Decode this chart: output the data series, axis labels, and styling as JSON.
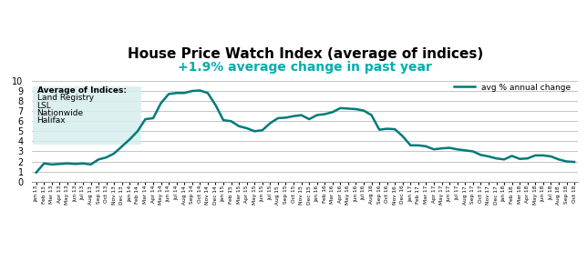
{
  "title": "House Price Watch Index (average of indices)",
  "subtitle": "+1.9% average change in past year",
  "subtitle_color": "#00AEAE",
  "title_color": "#000000",
  "line_color": "#007A7A",
  "legend_label": "avg % annual change",
  "ylabel_values": [
    0,
    1,
    2,
    3,
    4,
    5,
    6,
    7,
    8,
    9,
    10
  ],
  "ylim": [
    0,
    10.5
  ],
  "box_text": [
    "Average of Indices:",
    "Land Registry",
    "LSL",
    "Nationwide",
    "Halifax"
  ],
  "box_bg": "#D6EEEE",
  "x_labels": [
    "Jan 13",
    "Feb 13",
    "Mar 13",
    "Apr 13",
    "May 13",
    "Jun 13",
    "Jul 13",
    "Aug 13",
    "Sep 13",
    "Oct 13",
    "Nov 13",
    "Dec 13",
    "Jan 14",
    "Feb 14",
    "Mar 14",
    "Apr 14",
    "May 14",
    "Jun 14",
    "Jul 14",
    "Aug 14",
    "Sep 14",
    "Oct 14",
    "Nov 14",
    "Dec 14",
    "Jan 15",
    "Feb 15",
    "Mar 15",
    "Apr 15",
    "May 15",
    "Jun 15",
    "Jul 15",
    "Aug 15",
    "Sep 15",
    "Oct 15",
    "Nov 15",
    "Dec 15",
    "Jan 16",
    "Feb 16",
    "Mar 16",
    "Apr 16",
    "May 16",
    "Jun 16",
    "Jul 16",
    "Aug 16",
    "Sep 16",
    "Oct 16",
    "Nov 16",
    "Dec 16",
    "Jan 17",
    "Feb 17",
    "Mar 17",
    "Apr 17",
    "May 17",
    "Jun 17",
    "Jul 17",
    "Aug 17",
    "Sep 17",
    "Oct 17",
    "Nov 17",
    "Dec 17",
    "Jan 18",
    "Feb 18",
    "Mar 18",
    "Apr 18",
    "May 18",
    "Jun 18",
    "Jul 18",
    "Aug 18",
    "Sep 18",
    "Oct 18"
  ],
  "values": [
    0.9,
    1.8,
    1.7,
    1.75,
    1.8,
    1.75,
    1.8,
    1.7,
    2.2,
    2.4,
    2.8,
    3.5,
    4.2,
    5.0,
    6.2,
    6.3,
    7.8,
    8.7,
    8.8,
    8.8,
    9.0,
    9.05,
    8.8,
    7.6,
    6.1,
    6.0,
    5.5,
    5.3,
    5.0,
    5.1,
    5.8,
    6.3,
    6.35,
    6.5,
    6.6,
    6.2,
    6.6,
    6.7,
    6.9,
    7.3,
    7.25,
    7.2,
    7.05,
    6.6,
    5.15,
    5.25,
    5.2,
    4.5,
    3.6,
    3.6,
    3.5,
    3.2,
    3.3,
    3.35,
    3.2,
    3.1,
    3.0,
    2.65,
    2.5,
    2.3,
    2.2,
    2.55,
    2.25,
    2.3,
    2.6,
    2.6,
    2.5,
    2.2,
    2.0,
    1.95
  ],
  "background_color": "#FFFFFF",
  "grid_color": "#BBBBBB",
  "title_fontsize": 11,
  "subtitle_fontsize": 10
}
